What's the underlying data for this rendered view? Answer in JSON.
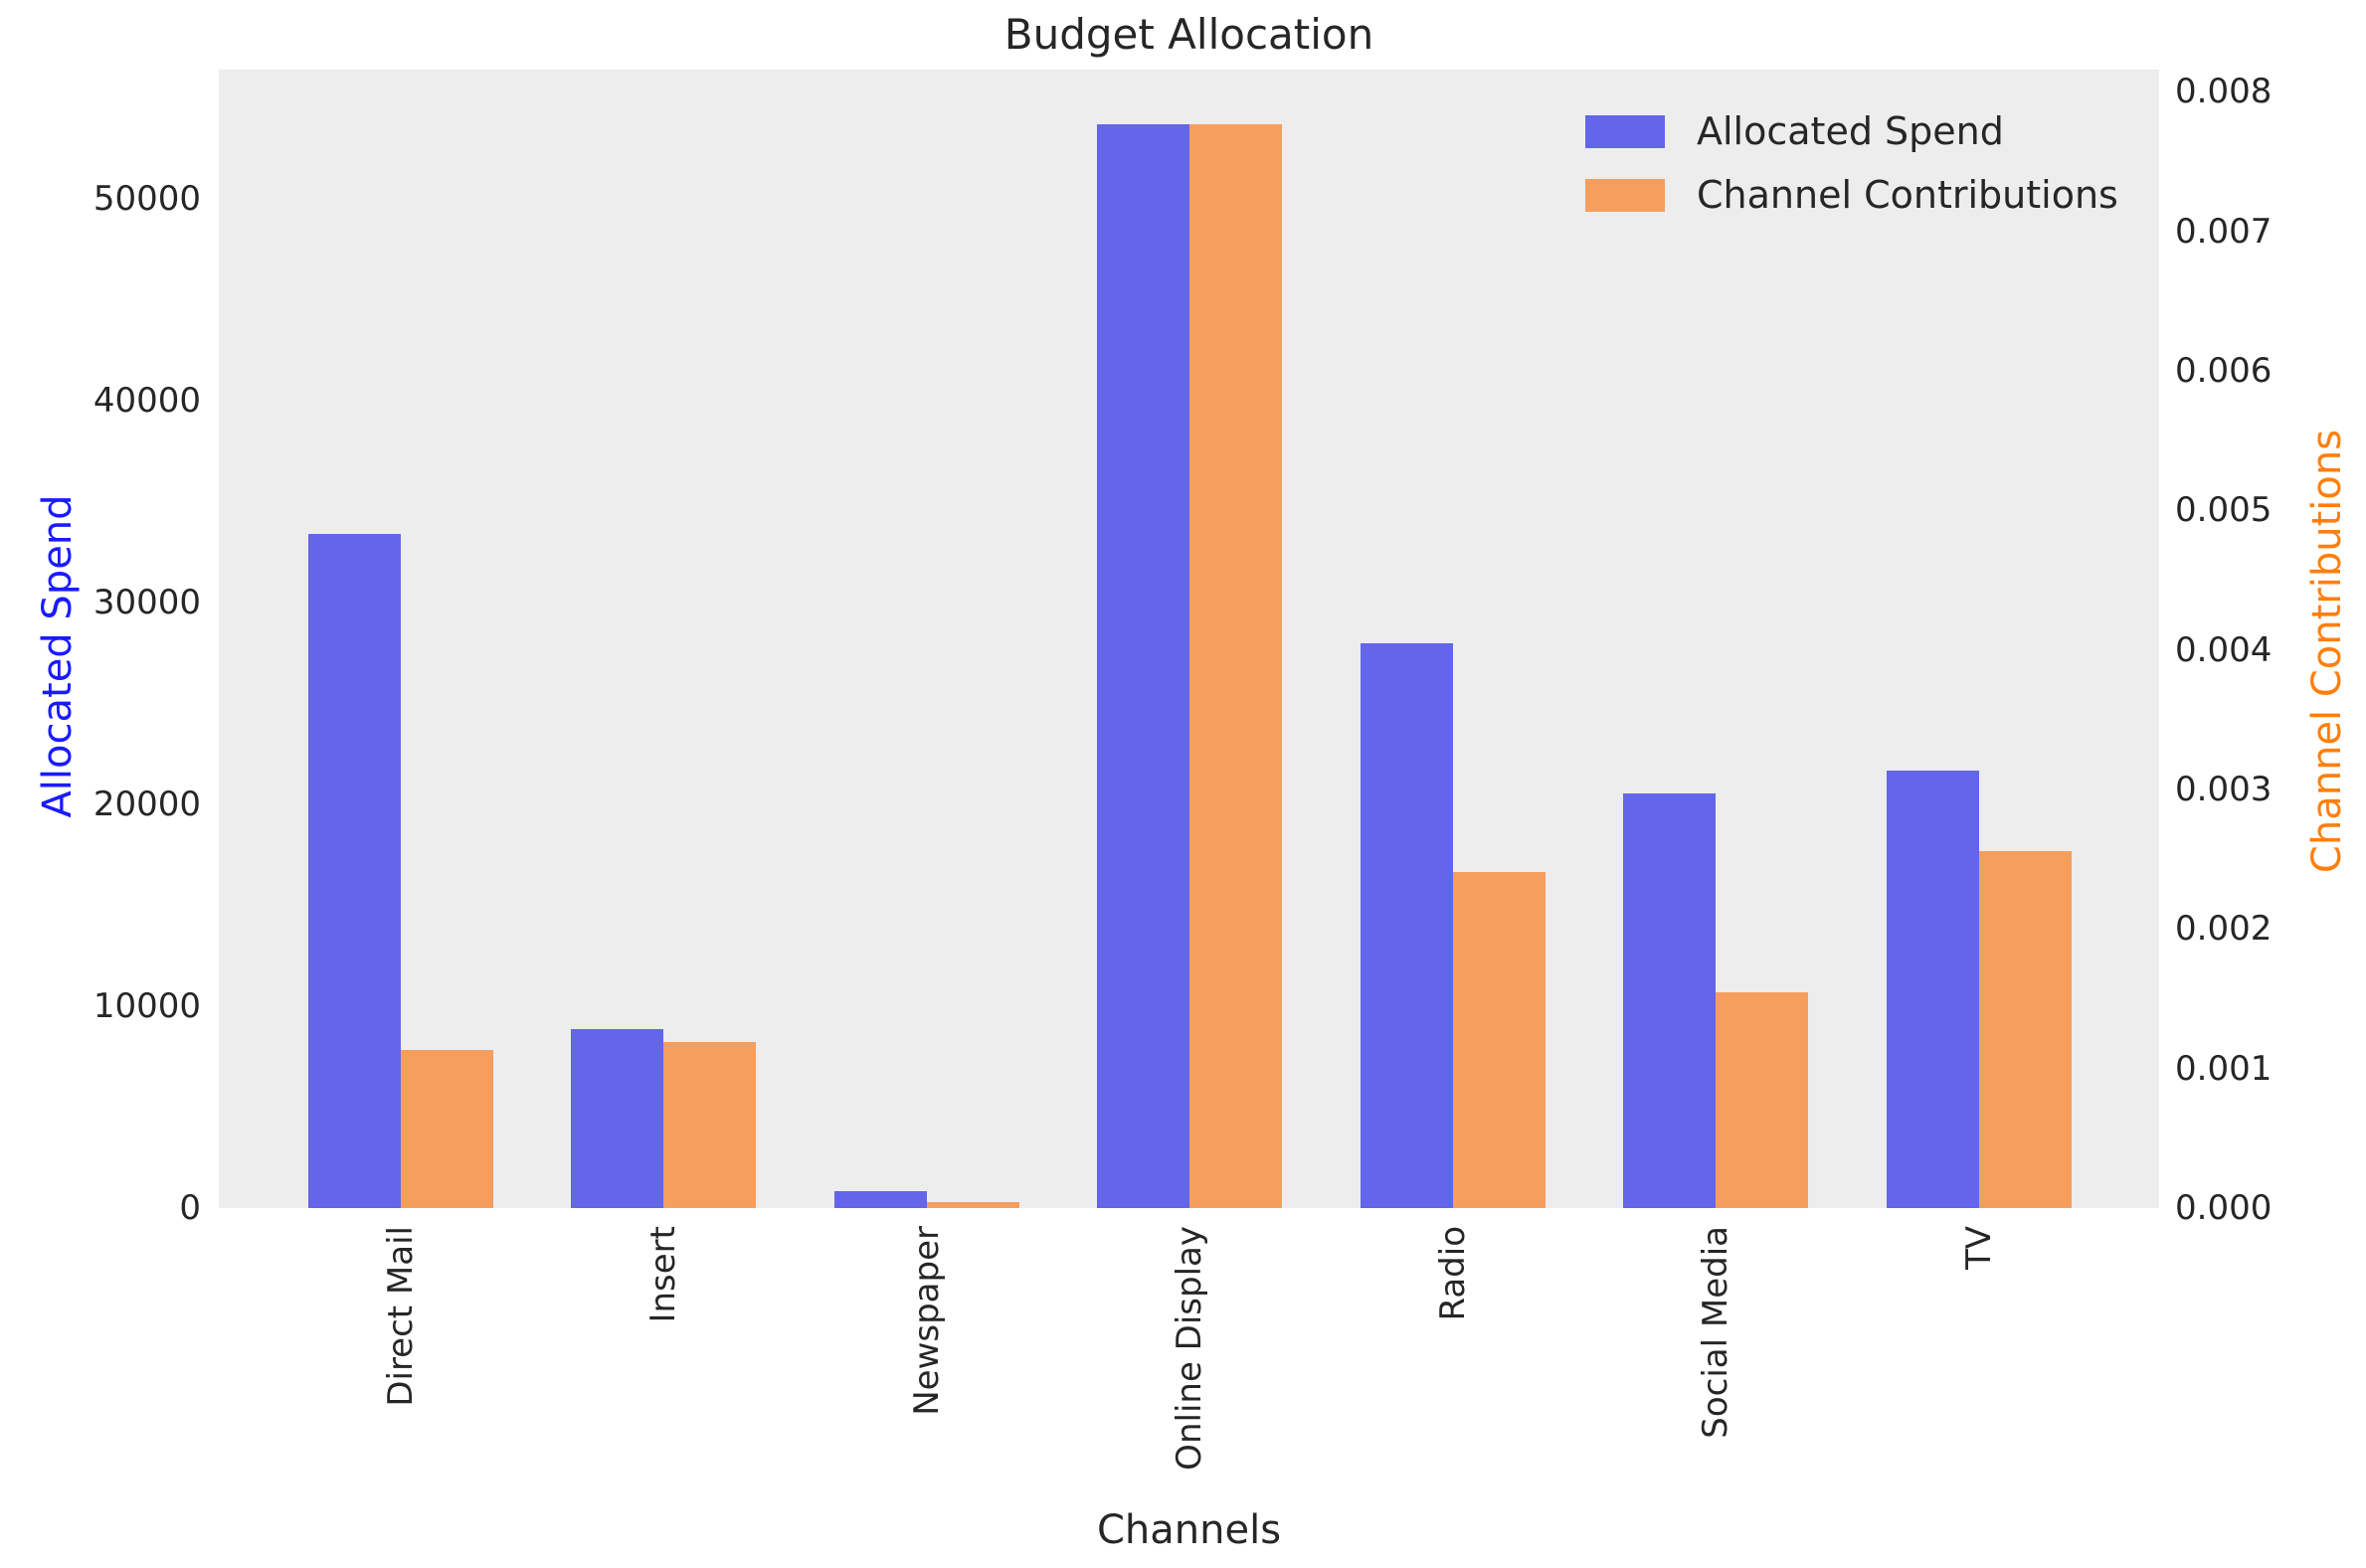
{
  "chart_data": {
    "type": "bar",
    "title": "Budget Allocation",
    "xlabel": "Channels",
    "categories": [
      "Direct Mail",
      "Insert",
      "Newspaper",
      "Online Display",
      "Radio",
      "Social Media",
      "TV"
    ],
    "series": [
      {
        "name": "Allocated Spend",
        "axis": "left",
        "color": "#6366e8",
        "values": [
          33400,
          8860,
          840,
          53700,
          28000,
          20520,
          21650
        ]
      },
      {
        "name": "Channel Contributions",
        "axis": "right",
        "color": "#f59e5e",
        "values": [
          0.00113,
          0.00119,
          4e-05,
          0.00777,
          0.00241,
          0.00155,
          0.00256
        ]
      }
    ],
    "left_axis": {
      "label": "Allocated Spend",
      "label_color": "#1a1aff",
      "tick_labels": [
        "0",
        "10000",
        "20000",
        "30000",
        "40000",
        "50000"
      ],
      "tick_values": [
        0,
        10000,
        20000,
        30000,
        40000,
        50000
      ],
      "range": [
        0,
        56400
      ]
    },
    "right_axis": {
      "label": "Channel Contributions",
      "label_color": "#ff7f0e",
      "tick_labels": [
        "0.000",
        "0.001",
        "0.002",
        "0.003",
        "0.004",
        "0.005",
        "0.006",
        "0.007",
        "0.008"
      ],
      "tick_values": [
        0,
        0.001,
        0.002,
        0.003,
        0.004,
        0.005,
        0.006,
        0.007,
        0.008
      ],
      "range": [
        0,
        0.00816
      ]
    },
    "legend": {
      "position": "upper right",
      "entries": [
        "Allocated Spend",
        "Channel Contributions"
      ]
    },
    "plot_bg": "#ededed",
    "grid": false
  }
}
